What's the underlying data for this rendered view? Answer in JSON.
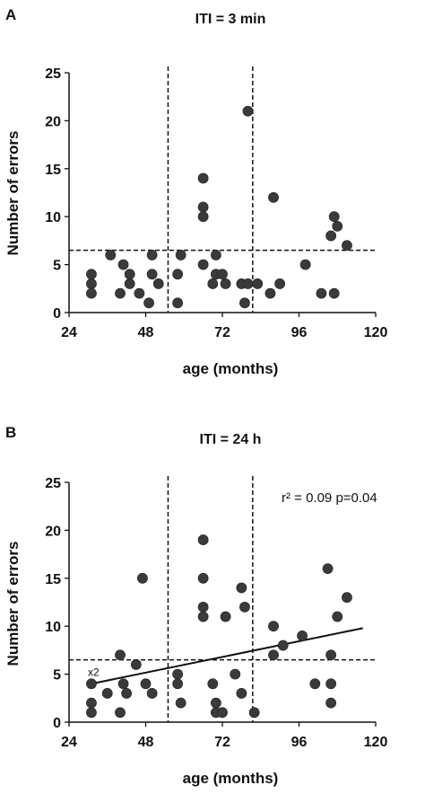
{
  "colors": {
    "marker": "#3a3a3a",
    "axis": "#111111"
  },
  "chart_data": [
    {
      "type": "scatter",
      "panel": "A",
      "title": "ITI = 3 min",
      "xlabel": "age (months)",
      "ylabel": "Number of errors",
      "xlim": [
        24,
        120
      ],
      "ylim": [
        0,
        25
      ],
      "xticks": [
        "24",
        "48",
        "72",
        "96",
        "120"
      ],
      "yticks": [
        "0",
        "5",
        "10",
        "15",
        "20",
        "25"
      ],
      "reference_lines": {
        "vertical": [
          55,
          81.5
        ],
        "horizontal": [
          6.5
        ]
      },
      "points": [
        [
          31,
          4
        ],
        [
          31,
          3
        ],
        [
          31,
          2
        ],
        [
          37,
          6
        ],
        [
          40,
          2
        ],
        [
          41,
          5
        ],
        [
          43,
          4
        ],
        [
          43,
          3
        ],
        [
          46,
          2
        ],
        [
          49,
          1
        ],
        [
          50,
          6
        ],
        [
          50,
          4
        ],
        [
          52,
          3
        ],
        [
          58,
          1
        ],
        [
          58,
          4
        ],
        [
          59,
          6
        ],
        [
          66,
          14
        ],
        [
          66,
          11
        ],
        [
          66,
          10
        ],
        [
          66,
          5
        ],
        [
          69,
          3
        ],
        [
          70,
          6
        ],
        [
          70,
          4
        ],
        [
          72,
          4
        ],
        [
          73,
          3
        ],
        [
          78,
          3
        ],
        [
          79,
          1
        ],
        [
          80,
          3
        ],
        [
          80,
          21
        ],
        [
          83,
          3
        ],
        [
          87,
          2
        ],
        [
          88,
          12
        ],
        [
          90,
          3
        ],
        [
          98,
          5
        ],
        [
          103,
          2
        ],
        [
          106,
          8
        ],
        [
          107,
          10
        ],
        [
          108,
          9
        ],
        [
          107,
          2
        ],
        [
          111,
          7
        ]
      ]
    },
    {
      "type": "scatter",
      "panel": "B",
      "title": "ITI = 24 h",
      "xlabel": "age (months)",
      "ylabel": "Number of errors",
      "xlim": [
        24,
        120
      ],
      "ylim": [
        0,
        25
      ],
      "xticks": [
        "24",
        "48",
        "72",
        "96",
        "120"
      ],
      "yticks": [
        "0",
        "5",
        "10",
        "15",
        "20",
        "25"
      ],
      "reference_lines": {
        "vertical": [
          55,
          81.5
        ],
        "horizontal": [
          6.5
        ]
      },
      "annotation": "x2",
      "stat_text": "r² = 0.09 p=0.04",
      "trend_line": {
        "x": [
          31,
          116
        ],
        "y": [
          4.0,
          9.8
        ]
      },
      "points": [
        [
          31,
          4
        ],
        [
          31,
          2
        ],
        [
          31,
          1
        ],
        [
          36,
          3
        ],
        [
          40,
          7
        ],
        [
          40,
          1
        ],
        [
          41,
          4
        ],
        [
          42,
          3
        ],
        [
          45,
          6
        ],
        [
          47,
          15
        ],
        [
          48,
          4
        ],
        [
          50,
          3
        ],
        [
          58,
          5
        ],
        [
          58,
          4
        ],
        [
          59,
          2
        ],
        [
          66,
          19
        ],
        [
          66,
          15
        ],
        [
          66,
          12
        ],
        [
          66,
          11
        ],
        [
          69,
          4
        ],
        [
          70,
          2
        ],
        [
          70,
          1
        ],
        [
          72,
          1
        ],
        [
          73,
          11
        ],
        [
          76,
          5
        ],
        [
          78,
          3
        ],
        [
          78,
          14
        ],
        [
          79,
          12
        ],
        [
          82,
          1
        ],
        [
          88,
          7
        ],
        [
          88,
          10
        ],
        [
          91,
          8
        ],
        [
          97,
          9
        ],
        [
          101,
          4
        ],
        [
          105,
          16
        ],
        [
          106,
          7
        ],
        [
          106,
          4
        ],
        [
          106,
          2
        ],
        [
          108,
          11
        ],
        [
          111,
          13
        ]
      ]
    }
  ]
}
